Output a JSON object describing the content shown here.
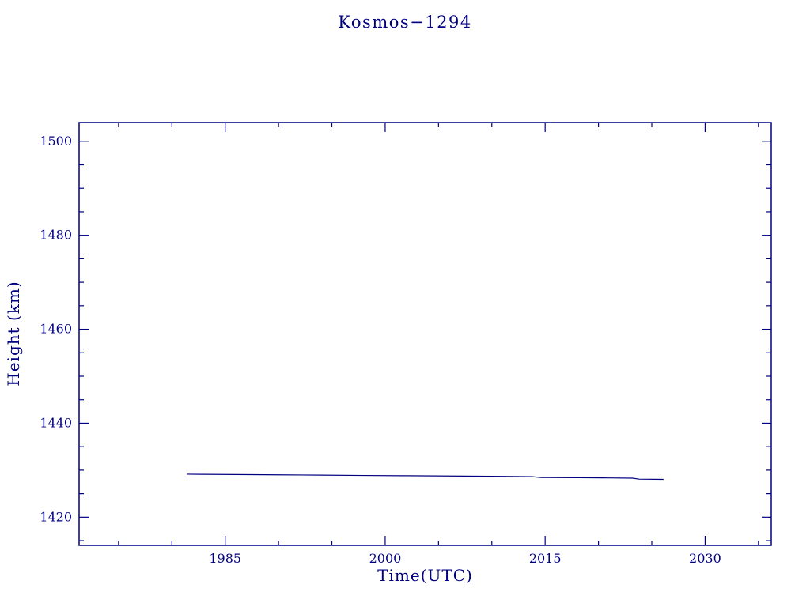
{
  "colors": {
    "accent": "#000080",
    "background": "#ffffff"
  },
  "chart_data": {
    "type": "line",
    "title": "Kosmos−1294",
    "xlabel": "Time(UTC)",
    "ylabel": "Height (km)",
    "xlim": [
      1971.3,
      2036.2
    ],
    "ylim": [
      1414,
      1504
    ],
    "x_major_ticks": [
      1985,
      2000,
      2015,
      2030
    ],
    "y_major_ticks": [
      1420,
      1440,
      1460,
      1480,
      1500
    ],
    "x_minor_step": 5,
    "y_minor_step": 5,
    "grid": false,
    "legend": "none",
    "series": [
      {
        "name": "height",
        "x": [
          1981.4,
          1983,
          1986,
          1990,
          1994,
          1998,
          2002,
          2006,
          2010,
          2013.8,
          2014.6,
          2018,
          2021,
          2023.2,
          2023.8,
          2026.1
        ],
        "y": [
          1429.15,
          1429.12,
          1429.08,
          1429.02,
          1428.95,
          1428.88,
          1428.82,
          1428.76,
          1428.7,
          1428.62,
          1428.45,
          1428.4,
          1428.35,
          1428.3,
          1428.1,
          1428.05
        ]
      }
    ]
  }
}
